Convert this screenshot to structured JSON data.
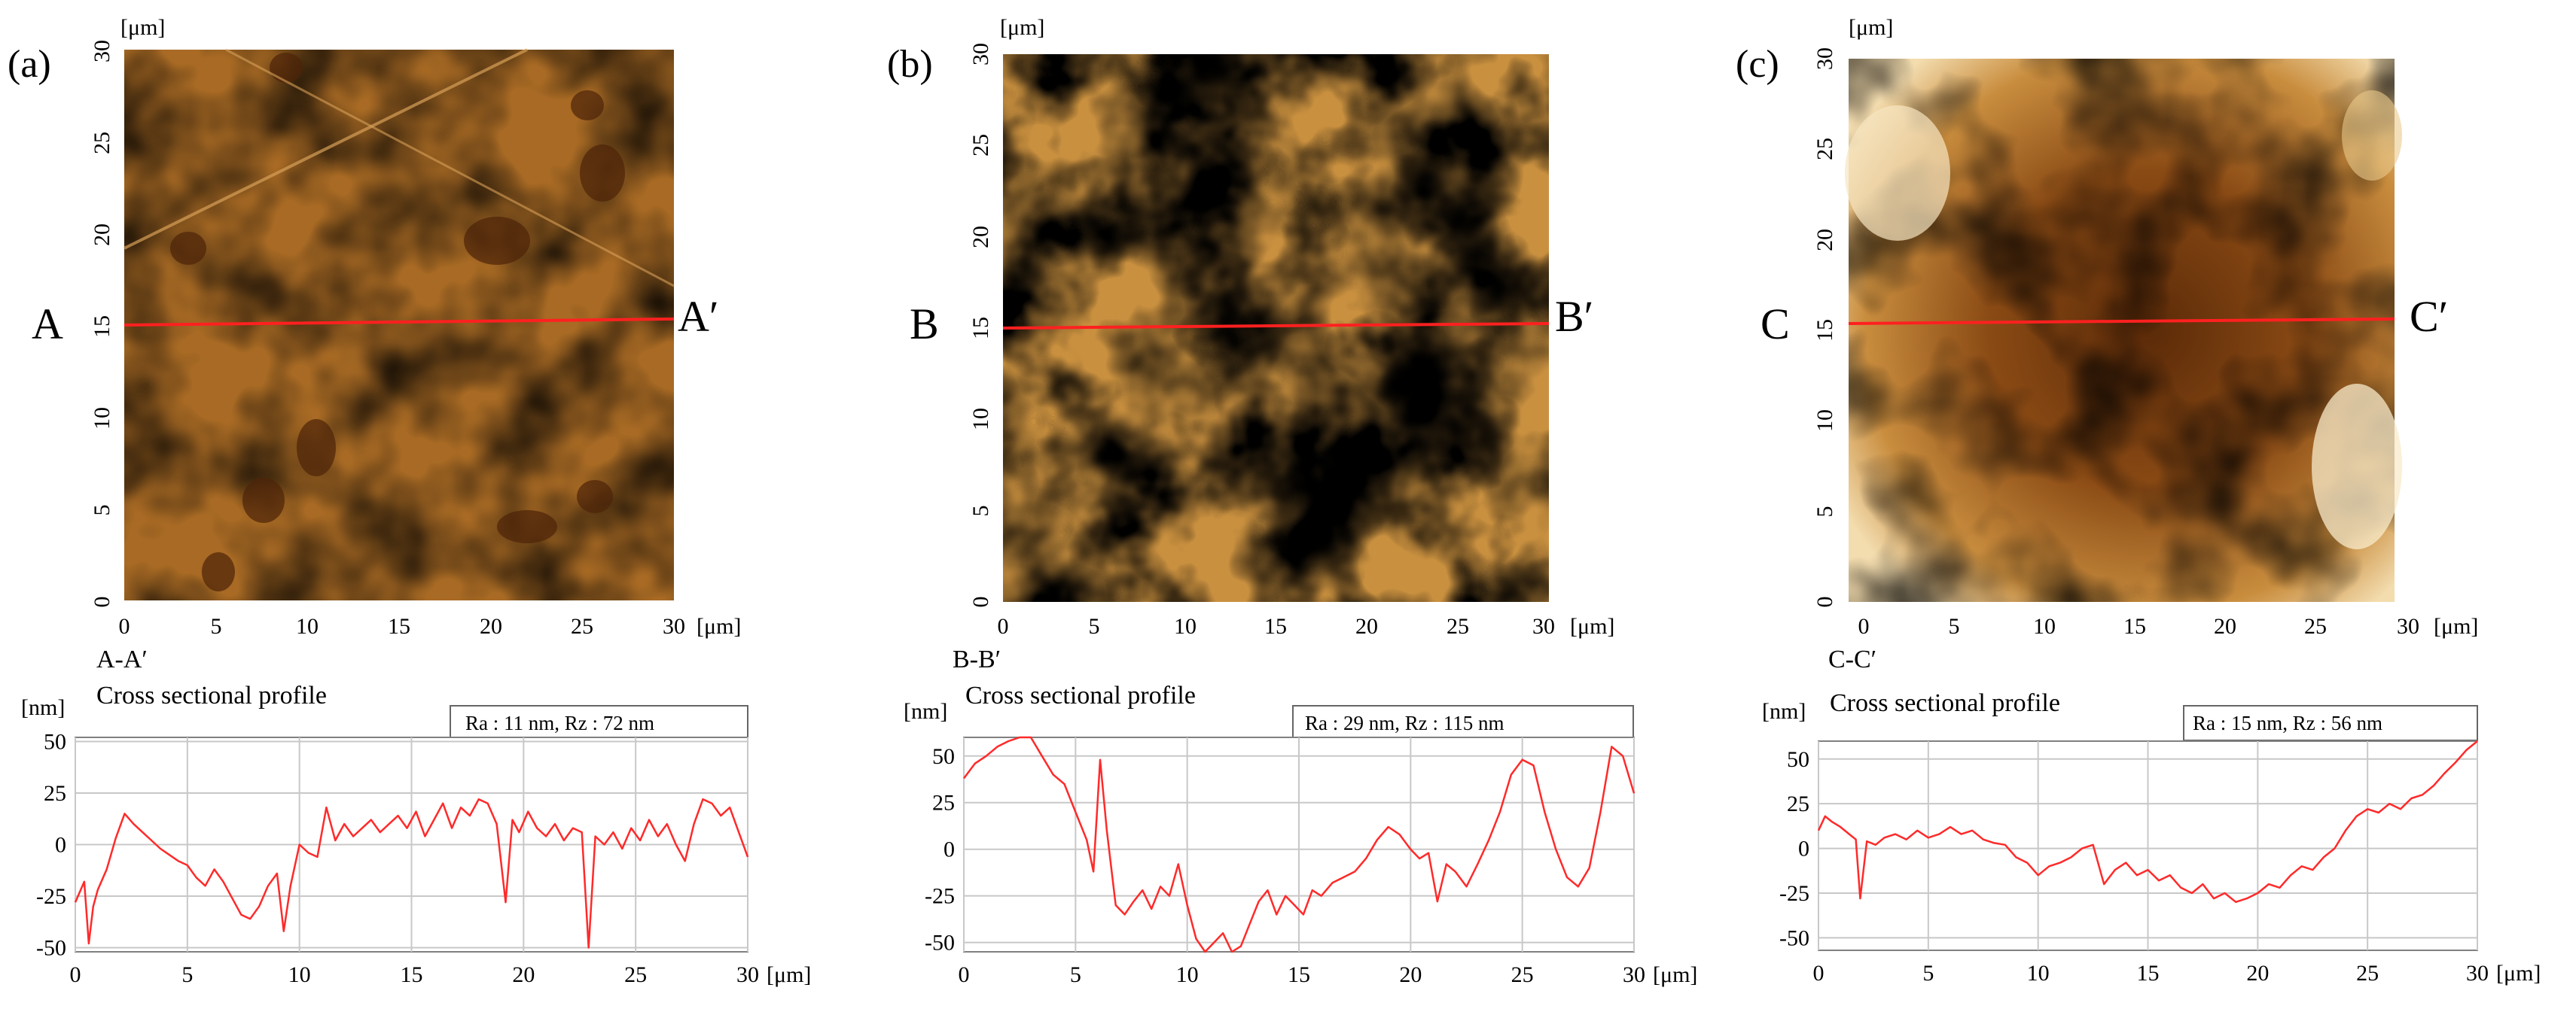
{
  "figure": {
    "panels": [
      {
        "id": "a",
        "panel_label": "(a)",
        "unit_top": "[μm]",
        "unit_right": "[μm]",
        "left_marker": "A",
        "right_marker": "A′",
        "section_label": "A-A′",
        "map_ticks_x": [
          "0",
          "5",
          "10",
          "15",
          "20",
          "25",
          "30"
        ],
        "map_ticks_y": [
          "0",
          "5",
          "10",
          "15",
          "20",
          "25",
          "30"
        ],
        "line_y_um": 15,
        "profile": {
          "title": "Cross sectional profile",
          "roughness": "Ra : 11 nm, Rz : 72 nm",
          "y_unit": "[nm]",
          "x_unit": "[μm]",
          "y_ticks": [
            "50",
            "25",
            "0",
            "-25",
            "-50"
          ],
          "x_ticks": [
            "0",
            "5",
            "10",
            "15",
            "20",
            "25",
            "30"
          ],
          "ylim": [
            -52,
            52
          ],
          "xlim": [
            0,
            30
          ]
        }
      },
      {
        "id": "b",
        "panel_label": "(b)",
        "unit_top": "[μm]",
        "unit_right": "[μm]",
        "left_marker": "B",
        "right_marker": "B′",
        "section_label": "B-B′",
        "map_ticks_x": [
          "0",
          "5",
          "10",
          "15",
          "20",
          "25",
          "30"
        ],
        "map_ticks_y": [
          "0",
          "5",
          "10",
          "15",
          "20",
          "25",
          "30"
        ],
        "line_y_um": 15,
        "profile": {
          "title": "Cross sectional profile",
          "roughness": "Ra : 29 nm, Rz : 115 nm",
          "y_unit": "[nm]",
          "x_unit": "[μm]",
          "y_ticks": [
            "50",
            "25",
            "0",
            "-25",
            "-50"
          ],
          "x_ticks": [
            "0",
            "5",
            "10",
            "15",
            "20",
            "25",
            "30"
          ],
          "ylim": [
            -55,
            60
          ],
          "xlim": [
            0,
            30
          ]
        }
      },
      {
        "id": "c",
        "panel_label": "(c)",
        "unit_top": "[μm]",
        "unit_right": "[μm]",
        "left_marker": "C",
        "right_marker": "C′",
        "section_label": "C-C′",
        "map_ticks_x": [
          "0",
          "5",
          "10",
          "15",
          "20",
          "25",
          "30"
        ],
        "map_ticks_y": [
          "0",
          "5",
          "10",
          "15",
          "20",
          "25",
          "30"
        ],
        "line_y_um": 15,
        "profile": {
          "title": "Cross sectional profile",
          "roughness": "Ra : 15 nm, Rz : 56 nm",
          "y_unit": "[nm]",
          "x_unit": "[μm]",
          "y_ticks": [
            "50",
            "25",
            "0",
            "-25",
            "-50"
          ],
          "x_ticks": [
            "0",
            "5",
            "10",
            "15",
            "20",
            "25",
            "30"
          ],
          "ylim": [
            -57,
            60
          ],
          "xlim": [
            0,
            30
          ]
        }
      }
    ]
  },
  "chart_data": [
    {
      "type": "line",
      "title": "Cross sectional profile",
      "subtitle": "A-A′",
      "annotation": "Ra : 11 nm, Rz : 72 nm",
      "xlabel": "[μm]",
      "ylabel": "[nm]",
      "xlim": [
        0,
        30
      ],
      "ylim": [
        -52,
        52
      ],
      "grid": true,
      "series": [
        {
          "name": "A-A′",
          "color": "#ff2a2a",
          "x": [
            0,
            0.4,
            0.6,
            0.8,
            1.0,
            1.4,
            1.8,
            2.2,
            2.6,
            3.0,
            3.4,
            3.8,
            4.2,
            4.6,
            5.0,
            5.4,
            5.8,
            6.2,
            6.6,
            7.0,
            7.4,
            7.8,
            8.2,
            8.6,
            9.0,
            9.3,
            9.6,
            10.0,
            10.4,
            10.8,
            11.2,
            11.6,
            12.0,
            12.4,
            12.8,
            13.2,
            13.6,
            14.0,
            14.4,
            14.8,
            15.2,
            15.6,
            16.0,
            16.4,
            16.8,
            17.2,
            17.6,
            18.0,
            18.4,
            18.8,
            19.2,
            19.5,
            19.8,
            20.2,
            20.6,
            21.0,
            21.4,
            21.8,
            22.2,
            22.6,
            22.9,
            23.2,
            23.6,
            24.0,
            24.4,
            24.8,
            25.2,
            25.6,
            26.0,
            26.4,
            26.8,
            27.2,
            27.6,
            28.0,
            28.4,
            28.8,
            29.2,
            29.6,
            30.0
          ],
          "values": [
            -28,
            -18,
            -48,
            -30,
            -22,
            -12,
            3,
            15,
            10,
            6,
            2,
            -2,
            -5,
            -8,
            -10,
            -16,
            -20,
            -12,
            -18,
            -26,
            -34,
            -36,
            -30,
            -20,
            -14,
            -42,
            -20,
            0,
            -4,
            -6,
            18,
            2,
            10,
            4,
            8,
            12,
            6,
            10,
            14,
            8,
            16,
            4,
            12,
            20,
            8,
            18,
            14,
            22,
            20,
            10,
            -28,
            12,
            6,
            16,
            8,
            4,
            10,
            2,
            8,
            6,
            -50,
            4,
            0,
            6,
            -2,
            8,
            2,
            12,
            4,
            10,
            0,
            -8,
            10,
            22,
            20,
            14,
            18,
            6,
            -6
          ]
        }
      ]
    },
    {
      "type": "line",
      "title": "Cross sectional profile",
      "subtitle": "B-B′",
      "annotation": "Ra : 29 nm, Rz : 115 nm",
      "xlabel": "[μm]",
      "ylabel": "[nm]",
      "xlim": [
        0,
        30
      ],
      "ylim": [
        -55,
        60
      ],
      "grid": true,
      "series": [
        {
          "name": "B-B′",
          "color": "#ff2a2a",
          "x": [
            0,
            0.5,
            1.0,
            1.5,
            2.0,
            2.5,
            3.0,
            3.5,
            4.0,
            4.5,
            5.0,
            5.5,
            5.8,
            6.1,
            6.4,
            6.8,
            7.2,
            7.6,
            8.0,
            8.4,
            8.8,
            9.2,
            9.6,
            10.0,
            10.4,
            10.8,
            11.2,
            11.6,
            12.0,
            12.4,
            12.8,
            13.2,
            13.6,
            14.0,
            14.4,
            14.8,
            15.2,
            15.6,
            16.0,
            16.5,
            17.0,
            17.5,
            18.0,
            18.5,
            19.0,
            19.5,
            20.0,
            20.4,
            20.8,
            21.2,
            21.6,
            22.0,
            22.5,
            23.0,
            23.5,
            24.0,
            24.5,
            25.0,
            25.5,
            26.0,
            26.5,
            27.0,
            27.5,
            28.0,
            28.5,
            29.0,
            29.5,
            30.0
          ],
          "values": [
            38,
            46,
            50,
            55,
            58,
            60,
            60,
            50,
            40,
            35,
            20,
            5,
            -12,
            48,
            10,
            -30,
            -35,
            -28,
            -22,
            -32,
            -20,
            -25,
            -8,
            -30,
            -48,
            -55,
            -50,
            -45,
            -58,
            -52,
            -40,
            -28,
            -22,
            -35,
            -25,
            -30,
            -35,
            -22,
            -25,
            -18,
            -15,
            -12,
            -5,
            5,
            12,
            8,
            0,
            -5,
            -2,
            -28,
            -8,
            -12,
            -20,
            -8,
            5,
            20,
            40,
            48,
            45,
            20,
            0,
            -15,
            -20,
            -10,
            20,
            55,
            50,
            30
          ]
        }
      ]
    },
    {
      "type": "line",
      "title": "Cross sectional profile",
      "subtitle": "C-C′",
      "annotation": "Ra : 15 nm, Rz : 56 nm",
      "xlabel": "[μm]",
      "ylabel": "[nm]",
      "xlim": [
        0,
        30
      ],
      "ylim": [
        -57,
        60
      ],
      "grid": true,
      "series": [
        {
          "name": "C-C′",
          "color": "#ff2a2a",
          "x": [
            0,
            0.3,
            0.6,
            1.0,
            1.4,
            1.7,
            1.9,
            2.2,
            2.6,
            3.0,
            3.5,
            4.0,
            4.5,
            5.0,
            5.5,
            6.0,
            6.5,
            7.0,
            7.5,
            8.0,
            8.5,
            9.0,
            9.5,
            10.0,
            10.5,
            11.0,
            11.5,
            12.0,
            12.5,
            13.0,
            13.5,
            14.0,
            14.5,
            15.0,
            15.5,
            16.0,
            16.5,
            17.0,
            17.5,
            18.0,
            18.5,
            19.0,
            19.5,
            20.0,
            20.5,
            21.0,
            21.5,
            22.0,
            22.5,
            23.0,
            23.5,
            24.0,
            24.5,
            25.0,
            25.5,
            26.0,
            26.5,
            27.0,
            27.5,
            28.0,
            28.5,
            29.0,
            29.5,
            30.0
          ],
          "values": [
            10,
            18,
            15,
            12,
            8,
            5,
            -28,
            4,
            2,
            6,
            8,
            5,
            10,
            6,
            8,
            12,
            8,
            10,
            5,
            3,
            2,
            -5,
            -8,
            -15,
            -10,
            -8,
            -5,
            0,
            2,
            -20,
            -12,
            -8,
            -15,
            -12,
            -18,
            -15,
            -22,
            -25,
            -20,
            -28,
            -25,
            -30,
            -28,
            -25,
            -20,
            -22,
            -15,
            -10,
            -12,
            -5,
            0,
            10,
            18,
            22,
            20,
            25,
            22,
            28,
            30,
            35,
            42,
            48,
            55,
            60
          ]
        }
      ]
    }
  ]
}
